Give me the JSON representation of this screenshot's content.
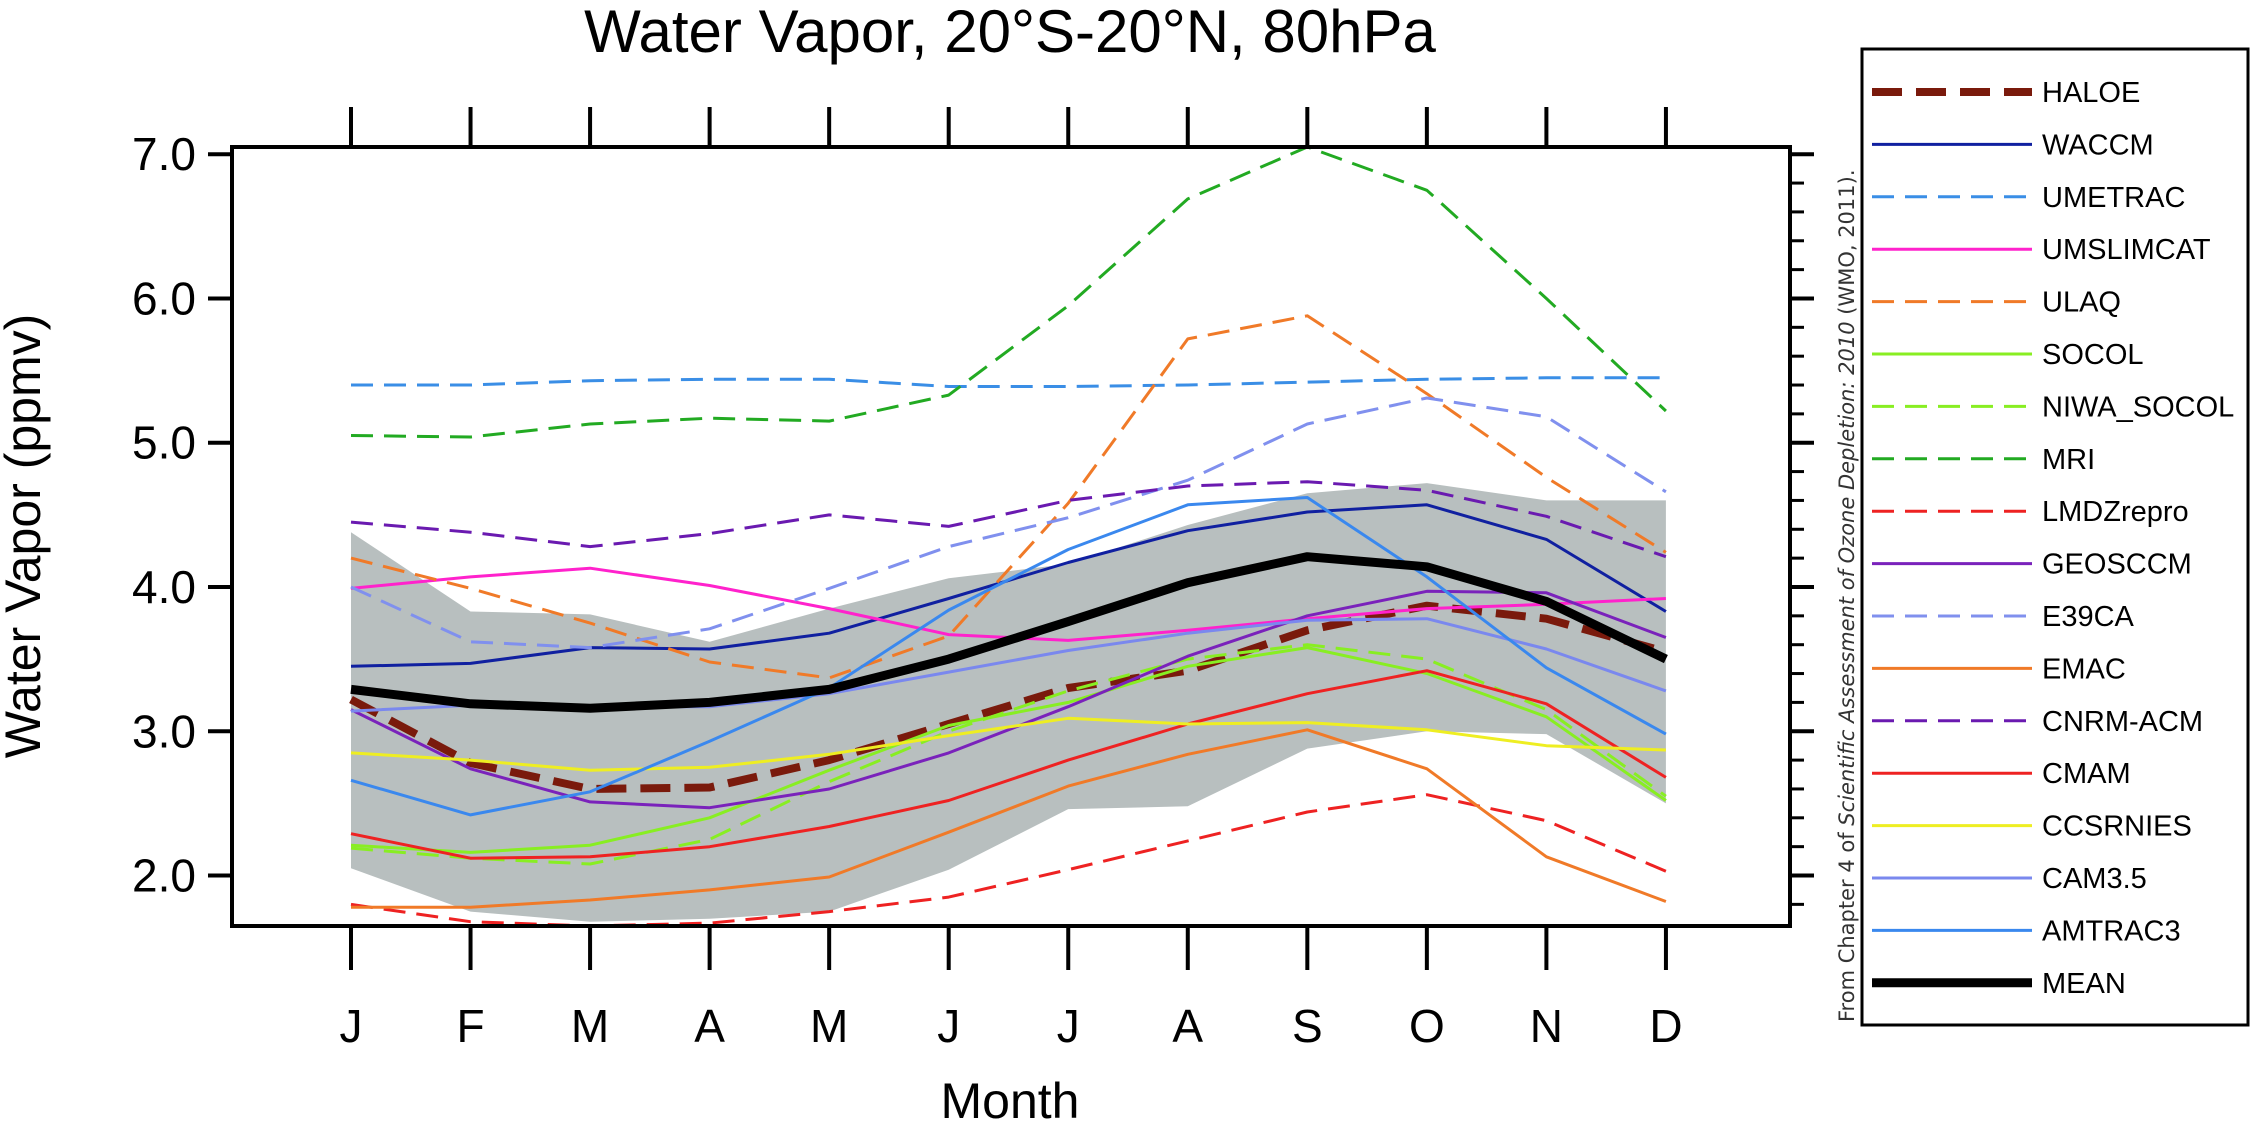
{
  "chart_data": {
    "type": "line",
    "title": "Water Vapor, 20°S-20°N, 80hPa",
    "xlabel": "Month",
    "ylabel": "Water Vapor (ppmv)",
    "ylim": [
      1.65,
      7.05
    ],
    "categories": [
      "J",
      "F",
      "M",
      "A",
      "M",
      "J",
      "J",
      "A",
      "S",
      "O",
      "N",
      "D"
    ],
    "y_ticks": [
      "7.0",
      "6.0",
      "5.0",
      "4.0",
      "3.0",
      "2.0"
    ],
    "y_tick_values": [
      7.0,
      6.0,
      5.0,
      4.0,
      3.0,
      2.0
    ],
    "legend_position": "right",
    "credit": {
      "pre": "From Chapter 4 of ",
      "italic": "Scientific Assessment of Ozone Depletion: 2010",
      "post": " (WMO, 2011)."
    },
    "shaded_range": {
      "color": "#b8bfbf",
      "upper": [
        4.38,
        3.83,
        3.81,
        3.62,
        3.85,
        4.06,
        4.16,
        4.43,
        4.65,
        4.72,
        4.6,
        4.6
      ],
      "lower": [
        2.05,
        1.75,
        1.68,
        1.7,
        1.75,
        2.04,
        2.46,
        2.48,
        2.88,
        3.0,
        2.98,
        2.5
      ]
    },
    "series": [
      {
        "name": "HALOE",
        "color": "#7a1a0c",
        "style": "dash",
        "width": 8,
        "values": [
          3.22,
          2.78,
          2.6,
          2.61,
          2.8,
          3.05,
          3.3,
          3.42,
          3.7,
          3.87,
          3.78,
          3.55
        ]
      },
      {
        "name": "WACCM",
        "color": "#1020a0",
        "style": "solid",
        "width": 3,
        "values": [
          3.45,
          3.47,
          3.58,
          3.57,
          3.68,
          3.92,
          4.17,
          4.39,
          4.52,
          4.57,
          4.33,
          3.83
        ]
      },
      {
        "name": "UMETRAC",
        "color": "#3a8ee6",
        "style": "dash",
        "width": 3,
        "values": [
          5.4,
          5.4,
          5.43,
          5.44,
          5.44,
          5.39,
          5.39,
          5.4,
          5.42,
          5.44,
          5.45,
          5.45
        ]
      },
      {
        "name": "UMSLIMCAT",
        "color": "#ff22cc",
        "style": "solid",
        "width": 3,
        "values": [
          3.99,
          4.07,
          4.13,
          4.01,
          3.85,
          3.67,
          3.63,
          3.7,
          3.78,
          3.85,
          3.88,
          3.92
        ]
      },
      {
        "name": "ULAQ",
        "color": "#f07a28",
        "style": "dash",
        "width": 3,
        "values": [
          4.2,
          3.99,
          3.75,
          3.48,
          3.37,
          3.66,
          4.58,
          5.72,
          5.88,
          5.34,
          4.76,
          4.24
        ]
      },
      {
        "name": "SOCOL",
        "color": "#88ee22",
        "style": "solid",
        "width": 3,
        "values": [
          2.21,
          2.16,
          2.21,
          2.4,
          2.73,
          3.04,
          3.2,
          3.45,
          3.58,
          3.4,
          3.1,
          2.52
        ]
      },
      {
        "name": "NIWA_SOCOL",
        "color": "#88ee22",
        "style": "dash",
        "width": 3,
        "values": [
          2.19,
          2.12,
          2.08,
          2.25,
          2.65,
          3.0,
          3.28,
          3.5,
          3.6,
          3.5,
          3.15,
          2.55
        ]
      },
      {
        "name": "MRI",
        "color": "#22aa22",
        "style": "dash",
        "width": 3,
        "values": [
          5.05,
          5.04,
          5.13,
          5.17,
          5.15,
          5.33,
          5.95,
          6.69,
          7.05,
          6.75,
          6.0,
          5.22
        ]
      },
      {
        "name": "LMDZrepro",
        "color": "#ee2222",
        "style": "dash",
        "width": 3,
        "values": [
          1.8,
          1.68,
          1.65,
          1.67,
          1.75,
          1.85,
          2.04,
          2.24,
          2.44,
          2.56,
          2.38,
          2.03
        ]
      },
      {
        "name": "GEOSCCM",
        "color": "#7a22bb",
        "style": "solid",
        "width": 3,
        "values": [
          3.15,
          2.74,
          2.51,
          2.47,
          2.6,
          2.85,
          3.17,
          3.52,
          3.8,
          3.97,
          3.96,
          3.65
        ]
      },
      {
        "name": "E39CA",
        "color": "#8090ee",
        "style": "dash",
        "width": 3,
        "values": [
          4.0,
          3.62,
          3.58,
          3.71,
          3.99,
          4.28,
          4.48,
          4.74,
          5.13,
          5.31,
          5.18,
          4.66
        ]
      },
      {
        "name": "EMAC",
        "color": "#f07a28",
        "style": "solid",
        "width": 3,
        "values": [
          1.78,
          1.78,
          1.83,
          1.9,
          1.99,
          2.3,
          2.62,
          2.84,
          3.01,
          2.74,
          2.13,
          1.82
        ]
      },
      {
        "name": "CNRM-ACM",
        "color": "#6a1ab0",
        "style": "dash",
        "width": 3,
        "values": [
          4.45,
          4.38,
          4.28,
          4.37,
          4.5,
          4.42,
          4.6,
          4.7,
          4.73,
          4.67,
          4.49,
          4.21
        ]
      },
      {
        "name": "CMAM",
        "color": "#ee2222",
        "style": "solid",
        "width": 3,
        "values": [
          2.29,
          2.12,
          2.13,
          2.2,
          2.34,
          2.52,
          2.8,
          3.05,
          3.26,
          3.42,
          3.19,
          2.68
        ]
      },
      {
        "name": "CCSRNIES",
        "color": "#eeee22",
        "style": "solid",
        "width": 3,
        "values": [
          2.85,
          2.8,
          2.73,
          2.75,
          2.84,
          2.97,
          3.09,
          3.05,
          3.06,
          3.01,
          2.9,
          2.87
        ]
      },
      {
        "name": "CAM3.5",
        "color": "#7a88ee",
        "style": "solid",
        "width": 3,
        "values": [
          3.14,
          3.18,
          3.17,
          3.17,
          3.26,
          3.41,
          3.56,
          3.68,
          3.77,
          3.78,
          3.57,
          3.28
        ]
      },
      {
        "name": "AMTRAC3",
        "color": "#3a88ee",
        "style": "solid",
        "width": 3,
        "values": [
          2.66,
          2.42,
          2.58,
          2.93,
          3.3,
          3.84,
          4.26,
          4.57,
          4.62,
          4.07,
          3.44,
          2.98
        ]
      },
      {
        "name": "MEAN",
        "color": "#000000",
        "style": "solid",
        "width": 9,
        "values": [
          3.29,
          3.19,
          3.16,
          3.2,
          3.29,
          3.5,
          3.76,
          4.03,
          4.21,
          4.14,
          3.9,
          3.5
        ]
      }
    ]
  }
}
